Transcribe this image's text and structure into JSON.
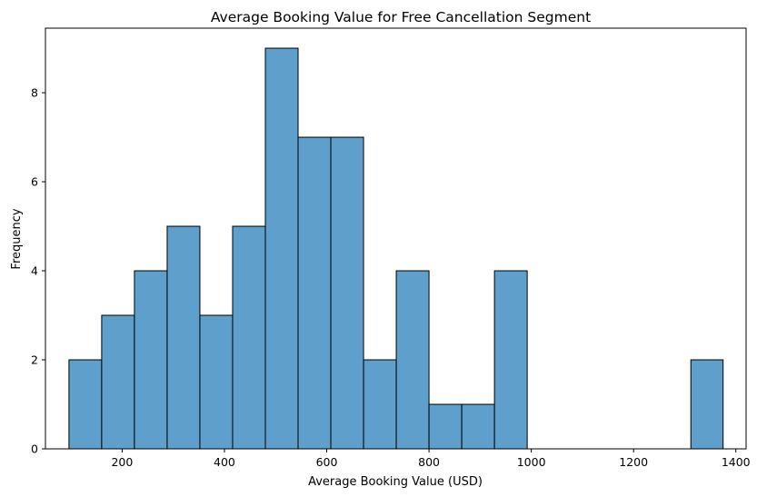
{
  "chart_data": {
    "type": "bar",
    "subtype": "histogram",
    "title": "Average Booking Value for Free Cancellation Segment",
    "xlabel": "Average Booking Value (USD)",
    "ylabel": "Frequency",
    "xlim": [
      50,
      1420
    ],
    "ylim": [
      0,
      9.45
    ],
    "x_ticks": [
      200,
      400,
      600,
      800,
      1000,
      1200,
      1400
    ],
    "y_ticks": [
      0,
      2,
      4,
      6,
      8
    ],
    "bin_edges": [
      96,
      160,
      224,
      288,
      352,
      416,
      480,
      544,
      608,
      672,
      736,
      800,
      864,
      928,
      992,
      1056,
      1120,
      1184,
      1248,
      1312,
      1375
    ],
    "values": [
      2,
      3,
      4,
      5,
      3,
      5,
      9,
      7,
      7,
      2,
      4,
      1,
      1,
      4,
      0,
      0,
      0,
      0,
      0,
      2
    ],
    "bar_color": "#5f9fcc",
    "edge_color": "#000000",
    "grid": false
  }
}
